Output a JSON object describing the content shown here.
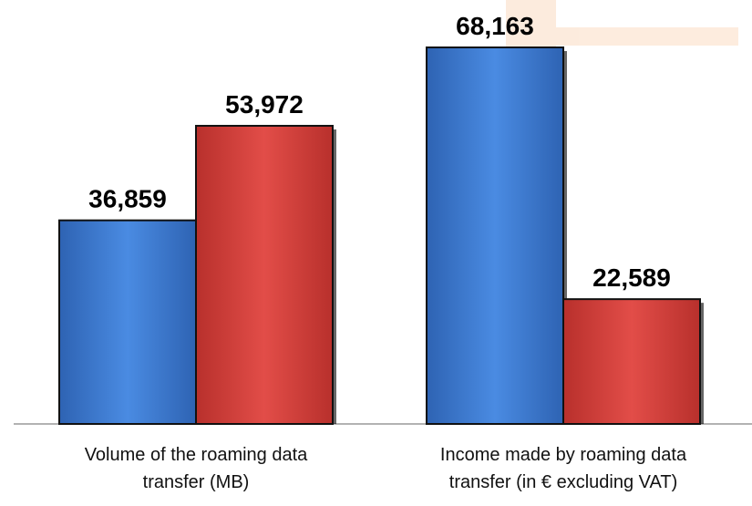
{
  "chart_data": {
    "type": "bar",
    "categories": [
      "Volume of the roaming data transfer (MB)",
      "Income made by roaming data transfer (in € excluding VAT)"
    ],
    "series": [
      {
        "color": "#3f7fd6",
        "values": [
          36859,
          68163
        ],
        "value_labels": [
          "36,859",
          "68,163"
        ]
      },
      {
        "color": "#d9403c",
        "values": [
          53972,
          22589
        ],
        "value_labels": [
          "53,972",
          "22,589"
        ]
      }
    ]
  }
}
